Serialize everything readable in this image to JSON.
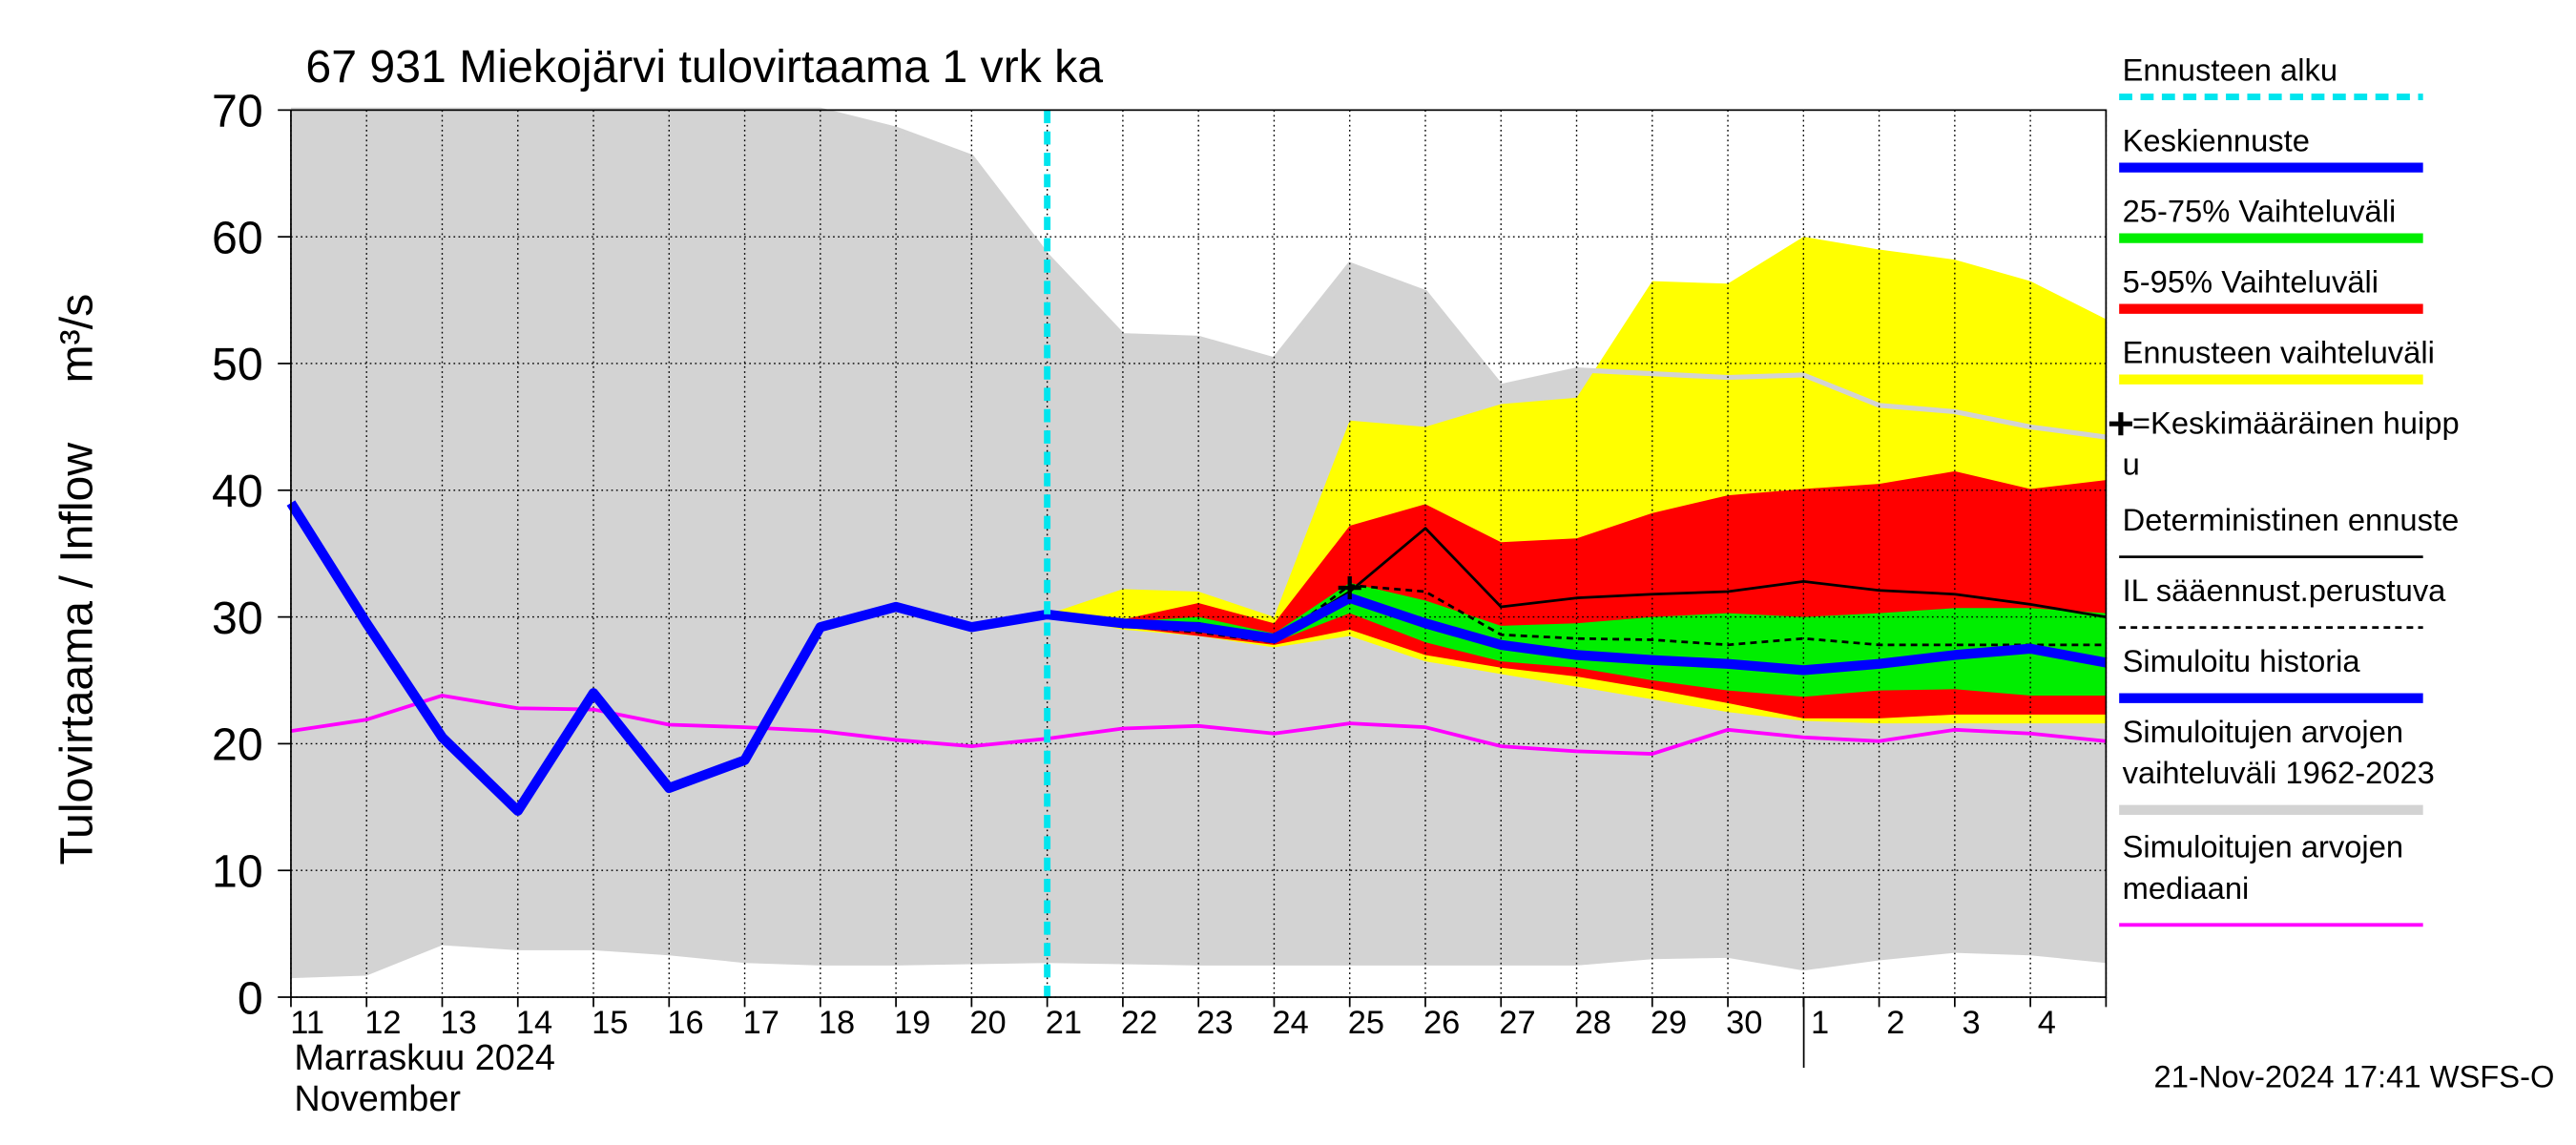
{
  "chart_data": {
    "type": "band-line",
    "title": "67 931 Miekojärvi tulovirtaama 1 vrk ka",
    "y_label": "Tulovirtaama / Inflow",
    "y_unit": "m³/s",
    "month_label": [
      "Marraskuu 2024",
      "November"
    ],
    "footer": "21-Nov-2024 17:41 WSFS-O",
    "categories": [
      "11",
      "12",
      "13",
      "14",
      "15",
      "16",
      "17",
      "18",
      "19",
      "20",
      "21",
      "22",
      "23",
      "24",
      "25",
      "26",
      "27",
      "28",
      "29",
      "30",
      "1",
      "2",
      "3",
      "4",
      null
    ],
    "ylim": [
      0,
      70
    ],
    "yticks": [
      0,
      10,
      20,
      30,
      40,
      50,
      60,
      70
    ],
    "grid": true,
    "forecast_start": {
      "name": "Ennusteen alku",
      "color": "#00e5ee",
      "category": "21"
    },
    "series": [
      {
        "name": "Keskiennuste",
        "kind": "line",
        "style": "thick",
        "color": "#0000ff",
        "values": [
          null,
          null,
          null,
          null,
          null,
          null,
          null,
          null,
          null,
          null,
          30.2,
          29.5,
          29.2,
          28.3,
          31.5,
          29.5,
          27.8,
          27,
          26.6,
          26.3,
          25.8,
          26.3,
          27,
          27.5,
          26.4
        ]
      },
      {
        "name": "25-75% Vaihteluväli",
        "kind": "band",
        "color": "#00ee00",
        "low": [
          null,
          null,
          null,
          null,
          null,
          null,
          null,
          null,
          null,
          null,
          30.2,
          29.3,
          28.8,
          28,
          30.3,
          28,
          26.5,
          26,
          25,
          24.2,
          23.7,
          24.2,
          24.3,
          23.8,
          23.8
        ],
        "high": [
          null,
          null,
          null,
          null,
          null,
          null,
          null,
          null,
          null,
          null,
          30.2,
          29.6,
          30,
          28.7,
          32.7,
          31.3,
          29.3,
          29.5,
          30,
          30.3,
          30,
          30.3,
          30.7,
          30.7,
          30.3
        ]
      },
      {
        "name": "5-95% Vaihteluväli",
        "kind": "band",
        "color": "#ff0000",
        "low": [
          null,
          null,
          null,
          null,
          null,
          null,
          null,
          null,
          null,
          null,
          30.2,
          29.2,
          28.5,
          27.8,
          29,
          27,
          26,
          25.3,
          24.3,
          23.2,
          22,
          22,
          22.3,
          22.3,
          22.3
        ],
        "high": [
          null,
          null,
          null,
          null,
          null,
          null,
          null,
          null,
          null,
          null,
          30.2,
          29.8,
          31.1,
          29.5,
          37.2,
          38.9,
          35.9,
          36.2,
          38.2,
          39.6,
          40.1,
          40.5,
          41.5,
          40.1,
          40.8
        ]
      },
      {
        "name": "Ennusteen vaihteluväli",
        "kind": "band",
        "color": "#ffff00",
        "low": [
          null,
          null,
          null,
          null,
          null,
          null,
          null,
          null,
          null,
          null,
          30.2,
          29,
          28.5,
          27.6,
          28.5,
          26.5,
          25.5,
          24.5,
          23.5,
          22.5,
          21.8,
          21.6,
          21.6,
          21.6,
          21.6
        ],
        "high": [
          null,
          null,
          null,
          null,
          null,
          null,
          null,
          null,
          null,
          null,
          30.2,
          32.2,
          32,
          30,
          45.5,
          45,
          46.8,
          47.3,
          56.5,
          56.3,
          60,
          59,
          58.2,
          56.5,
          53.5
        ]
      },
      {
        "name": "Deterministinen ennuste",
        "kind": "line",
        "style": "thin",
        "color": "#000000",
        "values": [
          null,
          null,
          null,
          null,
          null,
          null,
          null,
          null,
          null,
          null,
          30.2,
          29.5,
          29.5,
          28.3,
          32,
          37,
          30.8,
          31.5,
          31.8,
          32,
          32.8,
          32.1,
          31.8,
          31,
          30
        ]
      },
      {
        "name": "IL sääennust.perustuva",
        "kind": "line",
        "style": "dashed",
        "color": "#000000",
        "values": [
          null,
          null,
          null,
          null,
          null,
          null,
          null,
          null,
          null,
          null,
          30.2,
          29.3,
          28.8,
          28,
          32.5,
          32,
          28.6,
          28.3,
          28.2,
          27.8,
          28.3,
          27.8,
          27.8,
          27.8,
          27.8
        ]
      },
      {
        "name": "Simuloitu historia",
        "kind": "line",
        "style": "thick",
        "color": "#0000ff",
        "values": [
          39,
          29.5,
          20.5,
          14.7,
          24,
          16.5,
          18.7,
          29.2,
          30.8,
          29.2,
          30.2,
          null,
          null,
          null,
          null,
          null,
          null,
          null,
          null,
          null,
          null,
          null,
          null,
          null,
          null
        ]
      },
      {
        "name": [
          "Simuloitujen arvojen",
          "vaihteluväli 1962-2023"
        ],
        "kind": "band",
        "color": "#d3d3d3",
        "low": [
          1.5,
          1.7,
          4.1,
          3.7,
          3.7,
          3.3,
          2.7,
          2.5,
          2.5,
          2.6,
          2.7,
          2.6,
          2.5,
          2.5,
          2.5,
          2.5,
          2.5,
          2.5,
          3,
          3.1,
          2.1,
          2.9,
          3.5,
          3.3,
          2.7
        ],
        "high": [
          70,
          70,
          70,
          70,
          70,
          70,
          70,
          70,
          68.5,
          66.3,
          58.5,
          52.2,
          52,
          50.3,
          57.8,
          55.6,
          48.2,
          49.5,
          49.2,
          48.9,
          49.1,
          46.7,
          46.2,
          45,
          44.2
        ]
      },
      {
        "name": [
          "Simuloitujen arvojen",
          "mediaani"
        ],
        "kind": "line",
        "style": "medium",
        "color": "#ff00ff",
        "values": [
          21,
          21.9,
          23.8,
          22.8,
          22.7,
          21.5,
          21.3,
          21,
          20.3,
          19.8,
          20.4,
          21.2,
          21.4,
          20.8,
          21.6,
          21.3,
          19.8,
          19.4,
          19.2,
          21.1,
          20.5,
          20.2,
          21.1,
          20.8,
          20.2
        ]
      }
    ],
    "peak": {
      "name": [
        "=Keskimääräinen huipp",
        "u"
      ],
      "category": "25",
      "value": 32.3,
      "color": "#000000"
    }
  }
}
